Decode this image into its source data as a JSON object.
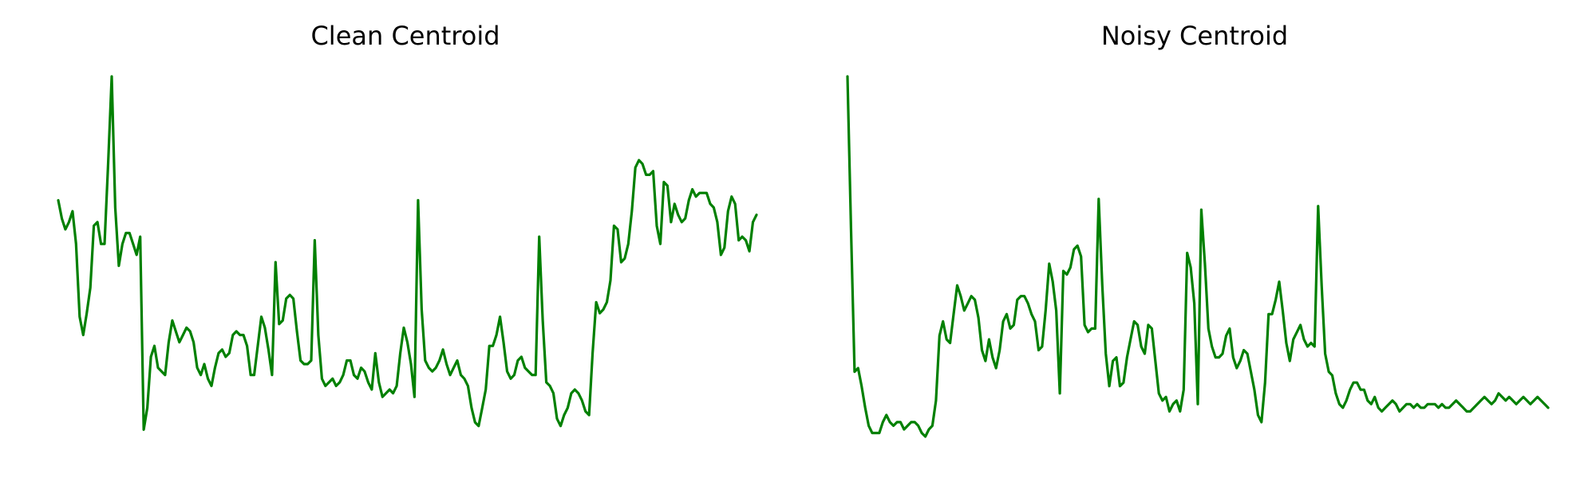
{
  "chart_data": [
    {
      "type": "line",
      "title": "Clean Centroid",
      "xlabel": "",
      "ylabel": "",
      "axes_visible": false,
      "grid": false,
      "color": "#008000",
      "ylim": [
        0,
        1
      ],
      "series": [
        {
          "values": [
            0.66,
            0.61,
            0.58,
            0.6,
            0.63,
            0.54,
            0.34,
            0.29,
            0.35,
            0.42,
            0.59,
            0.6,
            0.54,
            0.54,
            0.76,
            1.0,
            0.64,
            0.48,
            0.54,
            0.57,
            0.57,
            0.54,
            0.51,
            0.56,
            0.03,
            0.09,
            0.23,
            0.26,
            0.2,
            0.19,
            0.18,
            0.27,
            0.33,
            0.3,
            0.27,
            0.29,
            0.31,
            0.3,
            0.27,
            0.2,
            0.18,
            0.21,
            0.17,
            0.15,
            0.2,
            0.24,
            0.25,
            0.23,
            0.24,
            0.29,
            0.3,
            0.29,
            0.29,
            0.26,
            0.18,
            0.18,
            0.26,
            0.34,
            0.31,
            0.25,
            0.18,
            0.49,
            0.32,
            0.33,
            0.39,
            0.4,
            0.39,
            0.3,
            0.22,
            0.21,
            0.21,
            0.22,
            0.55,
            0.29,
            0.17,
            0.15,
            0.16,
            0.17,
            0.15,
            0.16,
            0.18,
            0.22,
            0.22,
            0.18,
            0.17,
            0.2,
            0.19,
            0.16,
            0.14,
            0.24,
            0.16,
            0.12,
            0.13,
            0.14,
            0.13,
            0.15,
            0.24,
            0.31,
            0.27,
            0.21,
            0.12,
            0.66,
            0.36,
            0.22,
            0.2,
            0.19,
            0.2,
            0.22,
            0.25,
            0.21,
            0.18,
            0.2,
            0.22,
            0.18,
            0.17,
            0.15,
            0.09,
            0.05,
            0.04,
            0.09,
            0.14,
            0.26,
            0.26,
            0.29,
            0.34,
            0.27,
            0.19,
            0.17,
            0.18,
            0.22,
            0.23,
            0.2,
            0.19,
            0.18,
            0.18,
            0.56,
            0.33,
            0.16,
            0.15,
            0.13,
            0.06,
            0.04,
            0.07,
            0.09,
            0.13,
            0.14,
            0.13,
            0.11,
            0.08,
            0.07,
            0.24,
            0.38,
            0.35,
            0.36,
            0.38,
            0.44,
            0.59,
            0.58,
            0.49,
            0.5,
            0.54,
            0.63,
            0.75,
            0.77,
            0.76,
            0.73,
            0.73,
            0.74,
            0.59,
            0.54,
            0.71,
            0.7,
            0.6,
            0.65,
            0.62,
            0.6,
            0.61,
            0.66,
            0.69,
            0.67,
            0.68,
            0.68,
            0.68,
            0.65,
            0.64,
            0.6,
            0.51,
            0.53,
            0.63,
            0.67,
            0.65,
            0.55,
            0.56,
            0.55,
            0.52,
            0.6,
            0.62
          ]
        }
      ]
    },
    {
      "type": "line",
      "title": "Noisy Centroid",
      "xlabel": "",
      "ylabel": "",
      "axes_visible": false,
      "grid": false,
      "color": "#008000",
      "ylim": [
        0,
        1
      ],
      "series": [
        {
          "values": [
            1.0,
            0.58,
            0.18,
            0.19,
            0.14,
            0.08,
            0.03,
            0.01,
            0.01,
            0.01,
            0.04,
            0.06,
            0.04,
            0.03,
            0.04,
            0.04,
            0.02,
            0.03,
            0.04,
            0.04,
            0.03,
            0.01,
            0.0,
            0.02,
            0.03,
            0.1,
            0.28,
            0.32,
            0.27,
            0.26,
            0.34,
            0.42,
            0.39,
            0.35,
            0.37,
            0.39,
            0.38,
            0.33,
            0.24,
            0.21,
            0.27,
            0.22,
            0.19,
            0.24,
            0.32,
            0.34,
            0.3,
            0.31,
            0.38,
            0.39,
            0.39,
            0.37,
            0.34,
            0.32,
            0.24,
            0.25,
            0.35,
            0.48,
            0.43,
            0.35,
            0.12,
            0.46,
            0.45,
            0.47,
            0.52,
            0.53,
            0.5,
            0.31,
            0.29,
            0.3,
            0.3,
            0.66,
            0.42,
            0.23,
            0.14,
            0.21,
            0.22,
            0.14,
            0.15,
            0.22,
            0.27,
            0.32,
            0.31,
            0.25,
            0.23,
            0.31,
            0.3,
            0.21,
            0.12,
            0.1,
            0.11,
            0.07,
            0.09,
            0.1,
            0.07,
            0.13,
            0.51,
            0.47,
            0.37,
            0.09,
            0.63,
            0.48,
            0.3,
            0.25,
            0.22,
            0.22,
            0.23,
            0.28,
            0.3,
            0.22,
            0.19,
            0.21,
            0.24,
            0.23,
            0.18,
            0.13,
            0.06,
            0.04,
            0.15,
            0.34,
            0.34,
            0.38,
            0.43,
            0.35,
            0.26,
            0.21,
            0.27,
            0.29,
            0.31,
            0.27,
            0.25,
            0.26,
            0.25,
            0.64,
            0.42,
            0.23,
            0.18,
            0.17,
            0.12,
            0.09,
            0.08,
            0.1,
            0.13,
            0.15,
            0.15,
            0.13,
            0.13,
            0.1,
            0.09,
            0.11,
            0.08,
            0.07,
            0.08,
            0.09,
            0.1,
            0.09,
            0.07,
            0.08,
            0.09,
            0.09,
            0.08,
            0.09,
            0.08,
            0.08,
            0.09,
            0.09,
            0.09,
            0.08,
            0.09,
            0.08,
            0.08,
            0.09,
            0.1,
            0.09,
            0.08,
            0.07,
            0.07,
            0.08,
            0.09,
            0.1,
            0.11,
            0.1,
            0.09,
            0.1,
            0.12,
            0.11,
            0.1,
            0.11,
            0.1,
            0.09,
            0.1,
            0.11,
            0.1,
            0.09,
            0.1,
            0.11,
            0.1,
            0.09,
            0.08
          ]
        }
      ]
    }
  ]
}
